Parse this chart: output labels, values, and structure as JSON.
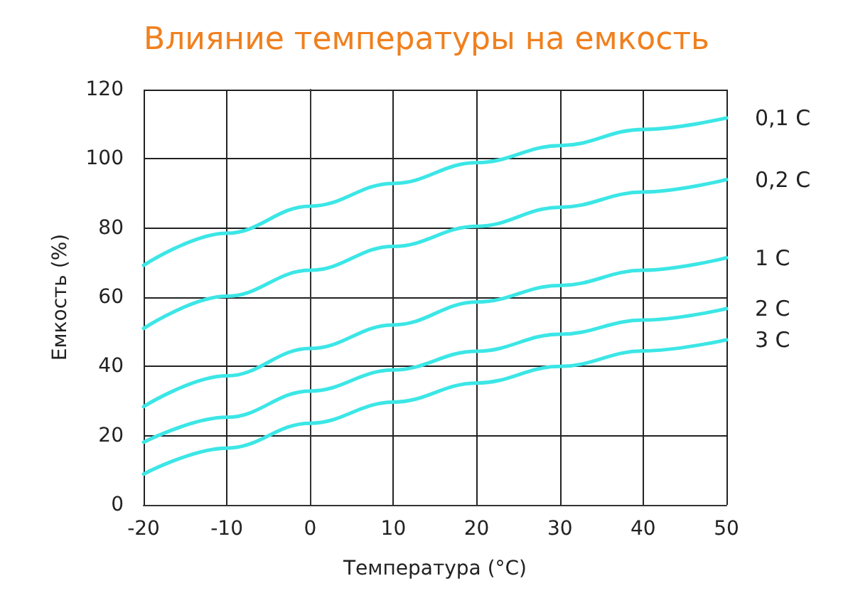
{
  "chart_data": {
    "type": "line",
    "title": "Влияние температуры на емкость",
    "xlabel": "Температура (°C)",
    "ylabel": "Емкость (%)",
    "x": [
      -20,
      -10,
      0,
      10,
      20,
      30,
      40,
      50
    ],
    "series": [
      {
        "name": "0,1 C",
        "color": "#3ce6e6",
        "values": [
          69.2,
          78.5,
          86.3,
          92.9,
          98.9,
          103.8,
          108.5,
          111.8
        ]
      },
      {
        "name": "0,2 C",
        "color": "#3ce6e6",
        "values": [
          51,
          60.3,
          67.8,
          74.7,
          80.5,
          86,
          90.4,
          94
        ]
      },
      {
        "name": "1 C",
        "color": "#3ce6e6",
        "values": [
          28.4,
          37.3,
          45.2,
          52,
          58.6,
          63.4,
          67.8,
          71.4
        ]
      },
      {
        "name": "2 C",
        "color": "#3ce6e6",
        "values": [
          18.1,
          25.3,
          32.9,
          39,
          44.4,
          49.3,
          53.4,
          56.7
        ]
      },
      {
        "name": "3 C",
        "color": "#3ce6e6",
        "values": [
          8.9,
          16.4,
          23.6,
          29.7,
          35.2,
          40,
          44.5,
          47.7
        ]
      }
    ],
    "xlim": [
      -20,
      50
    ],
    "xticks": [
      -20,
      -10,
      0,
      10,
      20,
      30,
      40,
      50
    ],
    "ylim": [
      0,
      120
    ],
    "yticks": [
      0,
      20,
      40,
      60,
      80,
      100,
      120
    ],
    "grid": true,
    "legend": false,
    "marker": "none",
    "line_style": "solid"
  }
}
